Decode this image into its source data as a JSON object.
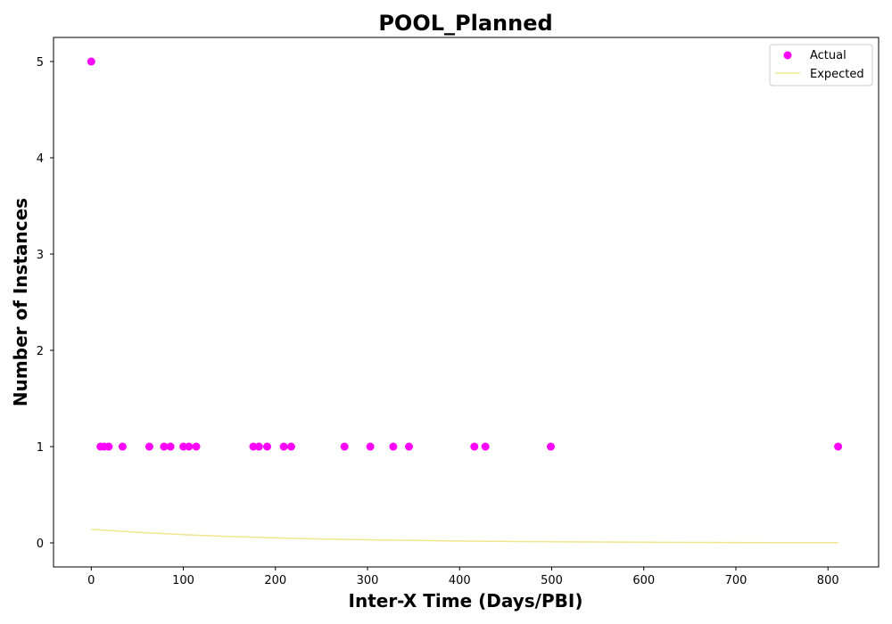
{
  "chart_data": {
    "type": "scatter",
    "title": "POOL_Planned",
    "xlabel": "Inter-X Time (Days/PBI)",
    "ylabel": "Number of Instances",
    "xlim": [
      -41,
      855
    ],
    "ylim": [
      -0.25,
      5.25
    ],
    "xticks": [
      0,
      100,
      200,
      300,
      400,
      500,
      600,
      700,
      800
    ],
    "yticks": [
      0,
      1,
      2,
      3,
      4,
      5
    ],
    "grid": false,
    "legend": {
      "placement": "top-right",
      "entries": [
        "Actual",
        "Expected"
      ]
    },
    "series": [
      {
        "name": "Actual",
        "kind": "scatter",
        "color": "#ff00ff",
        "points": [
          [
            0,
            5
          ],
          [
            10,
            1
          ],
          [
            14,
            1
          ],
          [
            19,
            1
          ],
          [
            34,
            1
          ],
          [
            63,
            1
          ],
          [
            79,
            1
          ],
          [
            86,
            1
          ],
          [
            100,
            1
          ],
          [
            106,
            1
          ],
          [
            114,
            1
          ],
          [
            176,
            1
          ],
          [
            182,
            1
          ],
          [
            191,
            1
          ],
          [
            209,
            1
          ],
          [
            217,
            1
          ],
          [
            275,
            1
          ],
          [
            303,
            1
          ],
          [
            328,
            1
          ],
          [
            345,
            1
          ],
          [
            416,
            1
          ],
          [
            428,
            1
          ],
          [
            499,
            1
          ],
          [
            811,
            1
          ]
        ]
      },
      {
        "name": "Expected",
        "kind": "line",
        "color": "#f0e68c",
        "points": [
          [
            0,
            0.14
          ],
          [
            50,
            0.11
          ],
          [
            100,
            0.085
          ],
          [
            150,
            0.067
          ],
          [
            200,
            0.052
          ],
          [
            250,
            0.041
          ],
          [
            300,
            0.032
          ],
          [
            350,
            0.025
          ],
          [
            400,
            0.019
          ],
          [
            450,
            0.015
          ],
          [
            500,
            0.011
          ],
          [
            550,
            0.009
          ],
          [
            600,
            0.007
          ],
          [
            650,
            0.005
          ],
          [
            700,
            0.004
          ],
          [
            750,
            0.003
          ],
          [
            811,
            0.002
          ]
        ]
      }
    ]
  }
}
